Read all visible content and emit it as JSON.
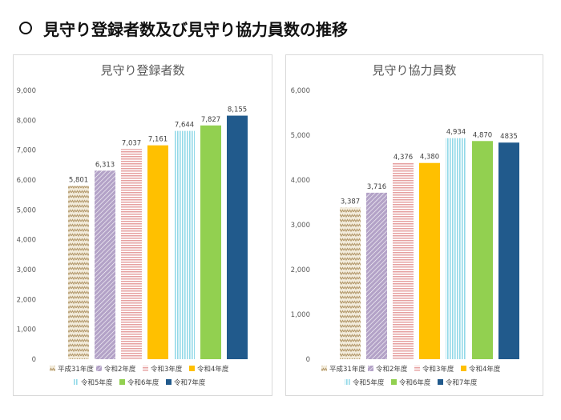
{
  "page": {
    "title": "見守り登録者数及び見守り協力員数の推移"
  },
  "series_meta": [
    {
      "name": "平成31年度",
      "color": "#b49a6e",
      "pattern": "zigzag"
    },
    {
      "name": "令和2年度",
      "color": "#b3a2c7",
      "pattern": "diagonal"
    },
    {
      "name": "令和3年度",
      "color": "#e6a0a0",
      "pattern": "horizontal"
    },
    {
      "name": "令和4年度",
      "color": "#ffc000",
      "pattern": "solid"
    },
    {
      "name": "令和5年度",
      "color": "#92d9e8",
      "pattern": "vertical"
    },
    {
      "name": "令和6年度",
      "color": "#92d050",
      "pattern": "solid"
    },
    {
      "name": "令和7年度",
      "color": "#215a8c",
      "pattern": "solid"
    }
  ],
  "chart_data": [
    {
      "type": "bar",
      "title": "見守り登録者数",
      "categories": [
        "平成31年度",
        "令和2年度",
        "令和3年度",
        "令和4年度",
        "令和5年度",
        "令和6年度",
        "令和7年度"
      ],
      "values": [
        5801,
        6313,
        7037,
        7161,
        7644,
        7827,
        8155
      ],
      "value_labels": [
        "5,801",
        "6,313",
        "7,037",
        "7,161",
        "7,644",
        "7,827",
        "8,155"
      ],
      "ylim": [
        0,
        9000
      ],
      "yticks": [
        "0",
        "1,000",
        "2,000",
        "3,000",
        "4,000",
        "5,000",
        "6,000",
        "7,000",
        "8,000",
        "9,000"
      ],
      "grid": false,
      "legend": "bottom"
    },
    {
      "type": "bar",
      "title": "見守り協力員数",
      "categories": [
        "平成31年度",
        "令和2年度",
        "令和3年度",
        "令和4年度",
        "令和5年度",
        "令和6年度",
        "令和7年度"
      ],
      "values": [
        3387,
        3716,
        4376,
        4380,
        4934,
        4870,
        4835
      ],
      "value_labels": [
        "3,387",
        "3,716",
        "4,376",
        "4,380",
        "4,934",
        "4,870",
        "4835"
      ],
      "ylim": [
        0,
        6000
      ],
      "yticks": [
        "0",
        "1,000",
        "2,000",
        "3,000",
        "4,000",
        "5,000",
        "6,000"
      ],
      "grid": false,
      "legend": "bottom"
    }
  ]
}
